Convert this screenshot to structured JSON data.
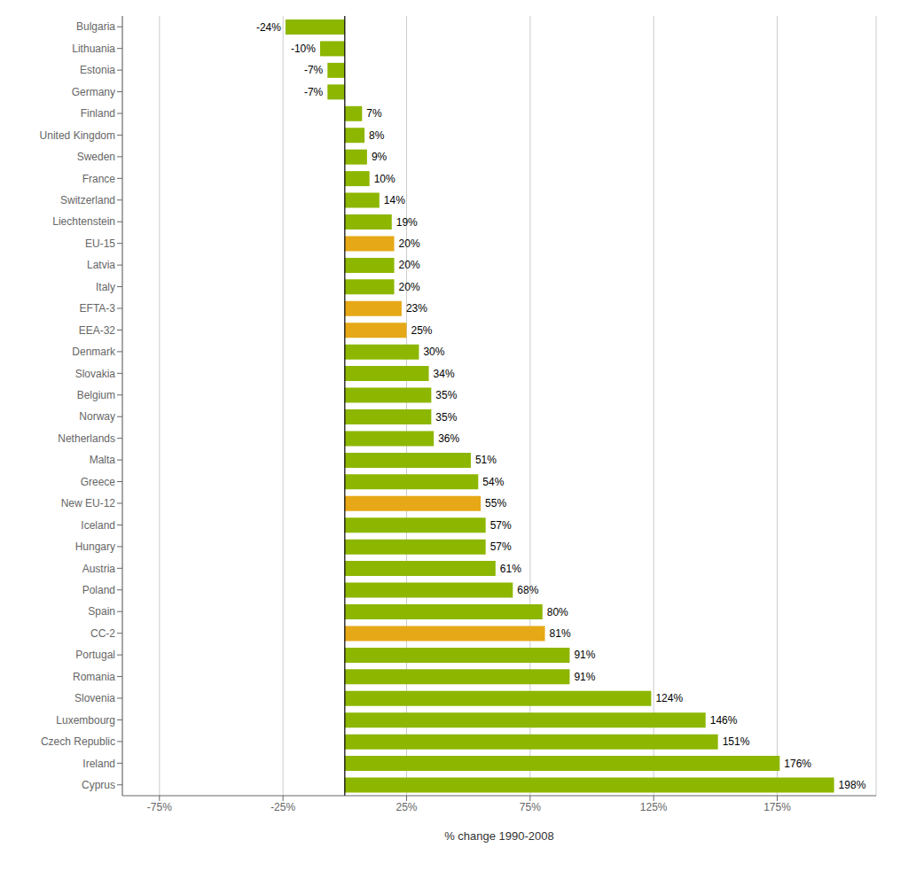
{
  "chart_data": {
    "type": "bar",
    "orientation": "horizontal",
    "categories": [
      "Bulgaria",
      "Lithuania",
      "Estonia",
      "Germany",
      "Finland",
      "United Kingdom",
      "Sweden",
      "France",
      "Switzerland",
      "Liechtenstein",
      "EU-15",
      "Latvia",
      "Italy",
      "EFTA-3",
      "EEA-32",
      "Denmark",
      "Slovakia",
      "Belgium",
      "Norway",
      "Netherlands",
      "Malta",
      "Greece",
      "New EU-12",
      "Iceland",
      "Hungary",
      "Austria",
      "Poland",
      "Spain",
      "CC-2",
      "Portugal",
      "Romania",
      "Slovenia",
      "Luxembourg",
      "Czech Republic",
      "Ireland",
      "Cyprus"
    ],
    "values": [
      -24,
      -10,
      -7,
      -7,
      7,
      8,
      9,
      10,
      14,
      19,
      20,
      20,
      20,
      23,
      25,
      30,
      34,
      35,
      35,
      36,
      51,
      54,
      55,
      57,
      57,
      61,
      68,
      80,
      81,
      91,
      91,
      124,
      146,
      151,
      176,
      198
    ],
    "value_labels": [
      "-24%",
      "-10%",
      "-7%",
      "-7%",
      "7%",
      "8%",
      "9%",
      "10%",
      "14%",
      "19%",
      "20%",
      "20%",
      "20%",
      "23%",
      "25%",
      "30%",
      "34%",
      "35%",
      "35%",
      "36%",
      "51%",
      "54%",
      "55%",
      "57%",
      "57%",
      "61%",
      "68%",
      "80%",
      "81%",
      "91%",
      "91%",
      "124%",
      "146%",
      "151%",
      "176%",
      "198%"
    ],
    "data_labels": true,
    "colors": [
      "#8db600",
      "#8db600",
      "#8db600",
      "#8db600",
      "#8db600",
      "#8db600",
      "#8db600",
      "#8db600",
      "#8db600",
      "#8db600",
      "#e6a817",
      "#8db600",
      "#8db600",
      "#e6a817",
      "#e6a817",
      "#8db600",
      "#8db600",
      "#8db600",
      "#8db600",
      "#8db600",
      "#8db600",
      "#8db600",
      "#e6a817",
      "#8db600",
      "#8db600",
      "#8db600",
      "#8db600",
      "#8db600",
      "#e6a817",
      "#8db600",
      "#8db600",
      "#8db600",
      "#8db600",
      "#8db600",
      "#8db600",
      "#8db600"
    ],
    "xlabel": "% change 1990-2008",
    "xlim": [
      -90,
      215
    ],
    "xticks": [
      {
        "value": -75,
        "label": "-75%"
      },
      {
        "value": -25,
        "label": "-25%"
      },
      {
        "value": 25,
        "label": "25%"
      },
      {
        "value": 75,
        "label": "75%"
      },
      {
        "value": 125,
        "label": "125%"
      },
      {
        "value": 175,
        "label": "175%"
      }
    ],
    "grid": true
  }
}
